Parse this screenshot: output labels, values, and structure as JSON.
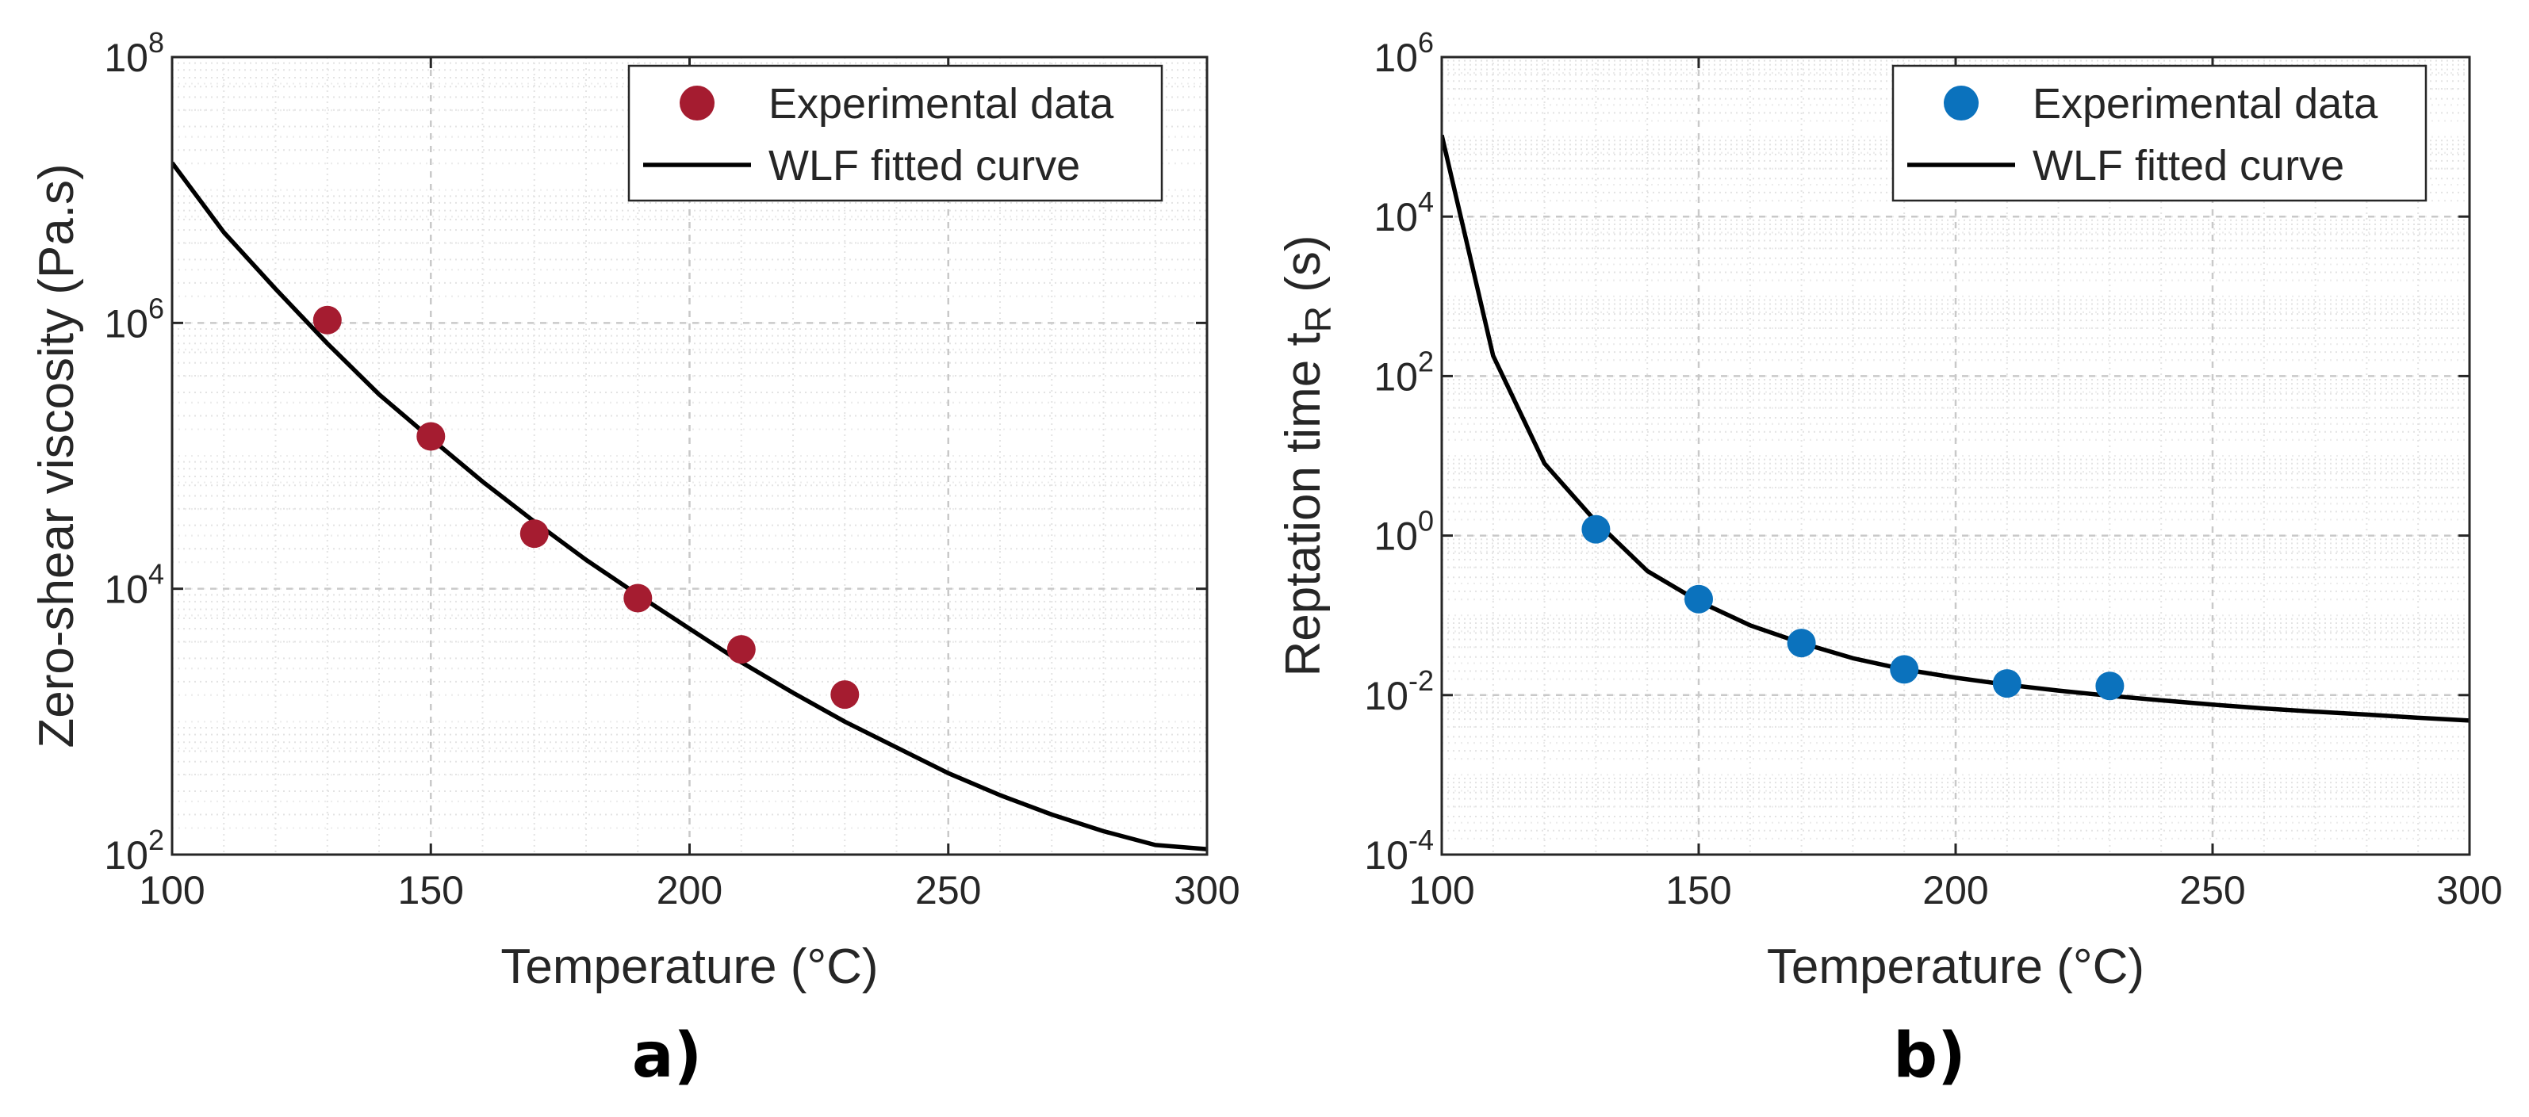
{
  "chart_data": [
    {
      "type": "scatter",
      "panel_label": "a)",
      "xlabel": "Temperature (°C)",
      "ylabel": "Zero-shear viscosity (Pa.s)",
      "ylabel_sub": "",
      "ylabel_suffix": "",
      "xlim": [
        100,
        300
      ],
      "ylim": [
        100,
        100000000
      ],
      "yscale": "log",
      "grid": true,
      "legend_position": "top-right",
      "x_ticks": [
        100,
        150,
        200,
        250,
        300
      ],
      "x_tick_labels": [
        "100",
        "150",
        "200",
        "250",
        "300"
      ],
      "y_ticks": [
        100,
        10000,
        1000000,
        100000000
      ],
      "y_tick_labels": [
        {
          "base": "10",
          "exp": "2"
        },
        {
          "base": "10",
          "exp": "4"
        },
        {
          "base": "10",
          "exp": "6"
        },
        {
          "base": "10",
          "exp": "8"
        }
      ],
      "series": [
        {
          "name": "Experimental data",
          "kind": "markers",
          "color": "#a51c30",
          "x": [
            130,
            150,
            170,
            190,
            210,
            230
          ],
          "y": [
            1050000,
            140000,
            26000,
            8500,
            3500,
            1600
          ]
        },
        {
          "name": "WLF fitted curve",
          "kind": "line",
          "color": "#000000",
          "x": [
            100,
            110,
            120,
            130,
            140,
            150,
            160,
            170,
            180,
            190,
            200,
            210,
            220,
            230,
            240,
            250,
            260,
            270,
            280,
            290,
            300
          ],
          "y": [
            16000000,
            4800000,
            1800000,
            700000,
            290000,
            135000,
            64000,
            32000,
            16500,
            9000,
            5000,
            2800,
            1650,
            1000,
            640,
            410,
            280,
            200,
            150,
            118,
            110
          ]
        }
      ]
    },
    {
      "type": "scatter",
      "panel_label": "b)",
      "xlabel": "Temperature (°C)",
      "ylabel": "Reptation time t",
      "ylabel_sub": "R",
      "ylabel_suffix": " (s)",
      "xlim": [
        100,
        300
      ],
      "ylim": [
        0.0001,
        1000000
      ],
      "yscale": "log",
      "grid": true,
      "legend_position": "top-right",
      "x_ticks": [
        100,
        150,
        200,
        250,
        300
      ],
      "x_tick_labels": [
        "100",
        "150",
        "200",
        "250",
        "300"
      ],
      "y_ticks": [
        0.0001,
        0.01,
        1,
        100,
        10000,
        1000000
      ],
      "y_tick_labels": [
        {
          "base": "10",
          "exp": "-4"
        },
        {
          "base": "10",
          "exp": "-2"
        },
        {
          "base": "10",
          "exp": "0"
        },
        {
          "base": "10",
          "exp": "2"
        },
        {
          "base": "10",
          "exp": "4"
        },
        {
          "base": "10",
          "exp": "6"
        }
      ],
      "series": [
        {
          "name": "Experimental data",
          "kind": "markers",
          "color": "#0b72bd",
          "x": [
            130,
            150,
            170,
            190,
            210,
            230
          ],
          "y": [
            1.2,
            0.16,
            0.045,
            0.021,
            0.014,
            0.013
          ]
        },
        {
          "name": "WLF fitted curve",
          "kind": "line",
          "color": "#000000",
          "x": [
            100,
            110,
            120,
            130,
            140,
            150,
            160,
            170,
            180,
            190,
            200,
            210,
            220,
            230,
            240,
            250,
            260,
            270,
            280,
            290,
            300
          ],
          "y": [
            105000,
            180,
            8,
            1.5,
            0.36,
            0.15,
            0.075,
            0.045,
            0.029,
            0.021,
            0.0165,
            0.0135,
            0.0114,
            0.0098,
            0.0086,
            0.0076,
            0.0068,
            0.0062,
            0.0057,
            0.0052,
            0.0048
          ]
        }
      ]
    }
  ]
}
